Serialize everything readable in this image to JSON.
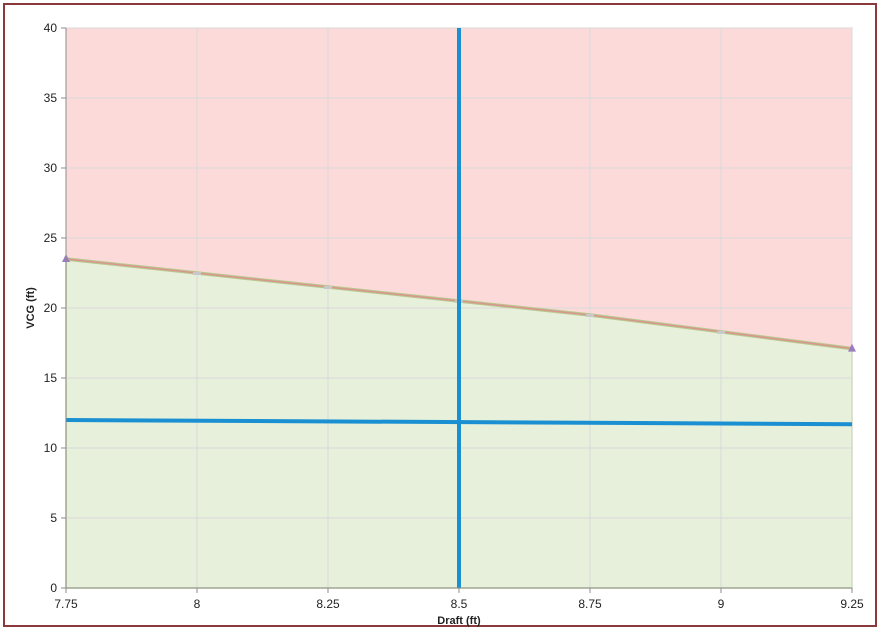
{
  "chart_data": {
    "type": "area",
    "title": "",
    "xlabel": "Draft (ft)",
    "ylabel": "VCG (ft)",
    "xlim": [
      7.75,
      9.25
    ],
    "ylim": [
      0,
      40
    ],
    "xticks": [
      7.75,
      8,
      8.25,
      8.5,
      8.75,
      9,
      9.25
    ],
    "xtick_labels": [
      "7.75",
      "8",
      "8.25",
      "8.5",
      "8.75",
      "9",
      "9.25"
    ],
    "yticks": [
      0,
      5,
      10,
      15,
      20,
      25,
      30,
      35,
      40
    ],
    "ytick_labels": [
      "0",
      "5",
      "10",
      "15",
      "20",
      "25",
      "30",
      "35",
      "40"
    ],
    "grid": true,
    "series": [
      {
        "role": "limit-curve",
        "x": [
          7.75,
          8,
          8.25,
          8.5,
          8.75,
          9,
          9.25
        ],
        "y": [
          23.5,
          22.5,
          21.5,
          20.5,
          19.5,
          18.3,
          17.1
        ]
      },
      {
        "role": "vertical-line",
        "x": [
          8.5,
          8.5
        ],
        "y": [
          0,
          40
        ]
      },
      {
        "role": "horizontal-line",
        "x": [
          7.75,
          9.25
        ],
        "y": [
          12.0,
          11.7
        ]
      }
    ],
    "colors": {
      "unsafe_fill": "#fcdada",
      "safe_fill": "#e6f0da",
      "limit_line": "#d99690",
      "limit_line_outer": "#b8c98c",
      "marker": "#9a7cc0",
      "blue_line": "#1a8fd1",
      "grid": "#d9d9d9",
      "frame": "#8a3a3a"
    }
  }
}
